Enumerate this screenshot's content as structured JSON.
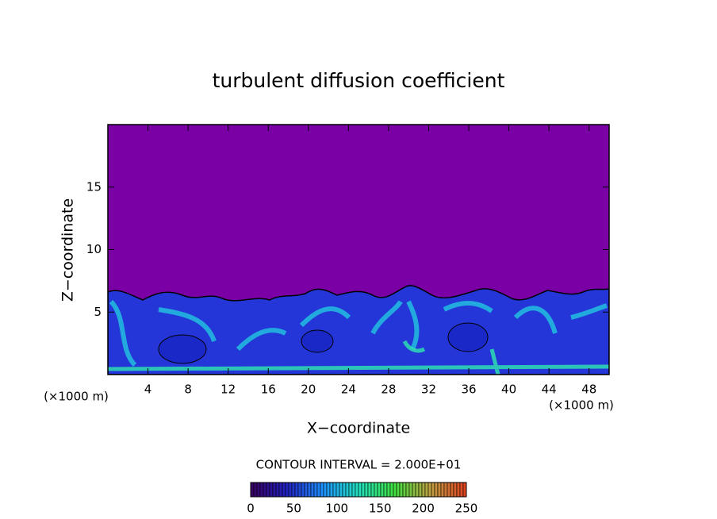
{
  "chart_data": {
    "type": "contour",
    "title": "turbulent diffusion coefficient",
    "xlabel": "X−coordinate",
    "ylabel": "Z−coordinate",
    "x_unit": "(×1000 m)",
    "contour_interval": "CONTOUR INTERVAL = 2.000E+01",
    "xlim": [
      0,
      50
    ],
    "ylim": [
      0,
      20
    ],
    "xticks": [
      4,
      8,
      12,
      16,
      20,
      24,
      28,
      32,
      36,
      40,
      44,
      48
    ],
    "yticks": [
      5,
      10,
      15
    ],
    "colorbar_lim": [
      0,
      250
    ],
    "colorbar_ticks": [
      0,
      50,
      100,
      150,
      200,
      250
    ],
    "colormap": [
      "#3a0060",
      "#2020c0",
      "#1e90ff",
      "#20e0c0",
      "#40e040",
      "#c0a040",
      "#e04020"
    ]
  }
}
